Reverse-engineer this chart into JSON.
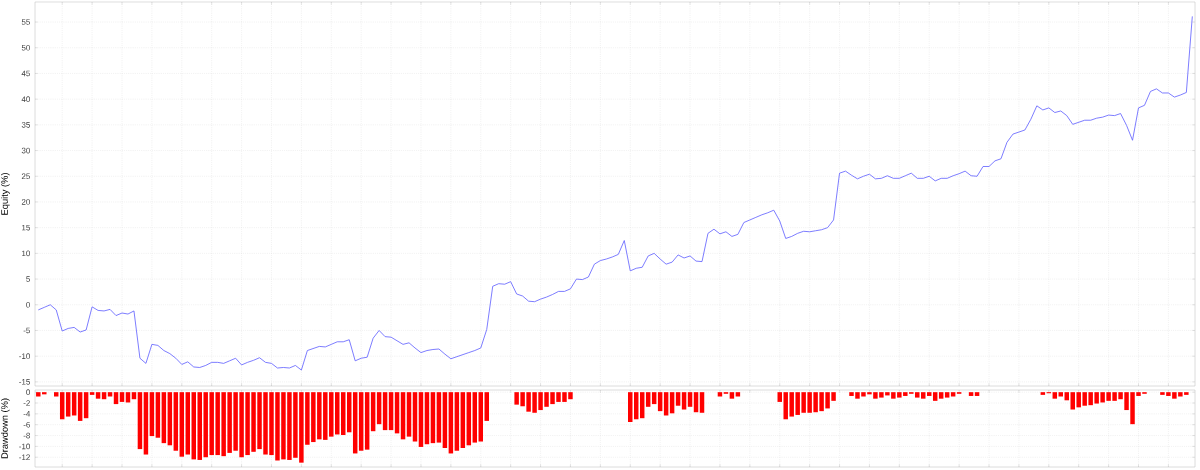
{
  "chart_data": [
    {
      "type": "line",
      "ylabel": "Equity (%)",
      "categories": [
        null,
        null,
        null,
        null,
        null,
        null,
        null,
        null,
        null,
        null,
        null,
        null,
        null,
        null,
        null,
        null,
        null,
        null,
        null,
        null,
        null,
        null,
        null,
        null,
        null,
        null,
        null,
        null,
        null,
        null,
        null,
        null,
        null,
        null,
        null,
        null,
        null,
        null,
        null,
        null,
        null,
        null,
        null,
        null,
        null,
        null,
        null,
        null,
        null,
        null,
        null,
        null,
        null,
        null,
        null,
        null,
        null,
        null,
        null,
        null,
        null,
        null,
        null,
        null,
        null,
        null,
        null,
        null,
        null,
        null,
        null,
        null,
        null,
        null,
        null,
        null,
        null,
        null,
        null,
        null,
        null,
        null,
        null,
        null,
        null,
        null,
        null,
        null,
        null,
        null,
        null,
        null,
        null,
        null,
        null,
        null,
        null,
        null,
        null,
        null,
        null,
        null,
        null,
        null,
        null,
        null,
        null,
        null,
        null,
        null,
        null,
        null,
        null,
        null,
        null,
        null,
        null,
        null,
        null,
        null,
        null,
        null,
        null,
        null,
        null,
        null,
        null,
        null,
        null,
        null,
        null,
        null,
        null,
        null,
        null,
        null,
        null,
        null,
        null,
        null,
        null,
        null,
        null,
        null,
        null,
        null,
        null,
        null,
        null,
        null,
        null,
        null,
        null,
        null,
        null,
        null,
        null,
        null,
        null,
        null,
        null,
        null,
        null,
        null,
        null,
        null,
        null,
        null,
        null,
        null,
        null,
        null,
        null,
        null,
        null,
        null,
        null,
        null,
        null,
        null,
        null,
        null,
        null,
        null,
        null,
        null,
        null,
        null,
        null,
        null,
        null,
        null,
        null,
        null
      ],
      "series": [
        {
          "color": "#5c5cff",
          "values": [
            -1.0,
            -0.5,
            0,
            -1.0,
            -5.1,
            -4.6,
            -4.4,
            -5.3,
            -4.9,
            -0.4,
            -1.1,
            -1.2,
            -0.9,
            -2.1,
            -1.6,
            -1.8,
            -1.2,
            -10.4,
            -11.4,
            -7.7,
            -7.9,
            -8.9,
            -9.5,
            -10.4,
            -11.6,
            -11.1,
            -12.1,
            -12.2,
            -11.8,
            -11.2,
            -11.2,
            -11.4,
            -10.9,
            -10.4,
            -11.7,
            -11.2,
            -10.8,
            -10.3,
            -11.2,
            -11.4,
            -12.3,
            -12.2,
            -12.3,
            -11.8,
            -12.7,
            -8.9,
            -8.5,
            -8.1,
            -8.2,
            -7.7,
            -7.2,
            -7.2,
            -6.8,
            -10.9,
            -10.4,
            -10.2,
            -6.5,
            -5.0,
            -6.2,
            -6.3,
            -7.0,
            -7.7,
            -7.4,
            -8.4,
            -9.3,
            -8.9,
            -8.7,
            -8.6,
            -9.6,
            -10.5,
            -10.1,
            -9.7,
            -9.3,
            -8.9,
            -8.4,
            -4.8,
            3.6,
            4.1,
            4.0,
            4.5,
            2.1,
            1.7,
            0.7,
            0.6,
            1.1,
            1.5,
            2.0,
            2.6,
            2.6,
            3.1,
            5.0,
            4.9,
            5.4,
            7.9,
            8.6,
            8.9,
            9.3,
            9.8,
            12.5,
            6.6,
            7.1,
            7.3,
            9.5,
            10.0,
            8.9,
            7.9,
            8.3,
            9.7,
            9.1,
            9.5,
            8.5,
            8.4,
            13.9,
            14.7,
            13.8,
            14.2,
            13.3,
            13.7,
            16.0,
            16.5,
            17.0,
            17.5,
            17.9,
            18.4,
            16.3,
            12.9,
            13.3,
            13.9,
            14.3,
            14.2,
            14.4,
            14.6,
            15.0,
            16.5,
            25.6,
            26.0,
            25.2,
            24.5,
            25.0,
            25.4,
            24.5,
            24.6,
            25.1,
            24.6,
            24.6,
            25.1,
            25.6,
            24.6,
            24.6,
            25.0,
            24.1,
            24.6,
            24.6,
            25.1,
            25.5,
            26.0,
            25.1,
            25.0,
            26.9,
            26.9,
            28.0,
            28.4,
            31.6,
            33.2,
            33.6,
            34.0,
            36.1,
            38.7,
            37.9,
            38.3,
            37.4,
            37.7,
            36.8,
            35.1,
            35.5,
            35.9,
            35.9,
            36.3,
            36.5,
            36.9,
            36.8,
            37.2,
            34.9,
            32.0,
            38.3,
            38.8,
            41.5,
            42.0,
            41.2,
            41.2,
            40.4,
            40.8,
            41.3,
            56.1
          ]
        }
      ],
      "ylim": [
        -15.8,
        58.9
      ],
      "yticks": [
        -15,
        -10,
        -5,
        0,
        5,
        10,
        15,
        20,
        25,
        30,
        35,
        40,
        45,
        50,
        55
      ],
      "grid": true
    },
    {
      "type": "bar",
      "ylabel": "Drawdown (%)",
      "categories": [
        null,
        null,
        null,
        null,
        null,
        null,
        null,
        null,
        null,
        null,
        null,
        null,
        null,
        null,
        null,
        null,
        null,
        null,
        null,
        null,
        null,
        null,
        null,
        null,
        null,
        null,
        null,
        null,
        null,
        null,
        null,
        null,
        null,
        null,
        null,
        null,
        null,
        null,
        null,
        null,
        null,
        null,
        null,
        null,
        null,
        null,
        null,
        null,
        null,
        null,
        null,
        null,
        null,
        null,
        null,
        null,
        null,
        null,
        null,
        null,
        null,
        null,
        null,
        null,
        null,
        null,
        null,
        null,
        null,
        null,
        null,
        null,
        null,
        null,
        null,
        null,
        null,
        null,
        null,
        null,
        null,
        null,
        null,
        null,
        null,
        null,
        null,
        null,
        null,
        null,
        null,
        null,
        null,
        null,
        null,
        null,
        null,
        null,
        null,
        null,
        null,
        null,
        null,
        null,
        null,
        null,
        null,
        null,
        null,
        null,
        null,
        null,
        null,
        null,
        null,
        null,
        null,
        null,
        null,
        null,
        null,
        null,
        null,
        null,
        null,
        null,
        null,
        null,
        null,
        null,
        null,
        null,
        null,
        null,
        null,
        null,
        null,
        null,
        null,
        null,
        null,
        null,
        null,
        null,
        null,
        null,
        null,
        null,
        null,
        null,
        null,
        null,
        null,
        null,
        null,
        null,
        null,
        null,
        null,
        null,
        null,
        null,
        null,
        null,
        null,
        null,
        null,
        null,
        null,
        null,
        null,
        null,
        null,
        null,
        null,
        null,
        null,
        null,
        null,
        null,
        null,
        null,
        null,
        null,
        null,
        null,
        null,
        null,
        null,
        null,
        null,
        null,
        null,
        null
      ],
      "color": "#ff0000",
      "values": [
        -0.8,
        -0.4,
        null,
        -0.8,
        -5.0,
        -4.5,
        -4.3,
        -5.3,
        -4.8,
        -0.5,
        -1.2,
        -1.3,
        -0.8,
        -2.2,
        -1.8,
        -1.9,
        -1.3,
        -10.5,
        -11.5,
        -8.1,
        -8.4,
        -9.4,
        -9.8,
        -10.8,
        -11.9,
        -11.5,
        -12.4,
        -12.5,
        -12.0,
        -11.6,
        -11.6,
        -11.8,
        -11.2,
        -10.8,
        -12.0,
        -11.6,
        -11.0,
        -10.5,
        -11.5,
        -11.6,
        -12.6,
        -12.4,
        -12.5,
        -12.1,
        -13.0,
        -9.7,
        -9.2,
        -8.7,
        -8.8,
        -8.2,
        -7.8,
        -7.9,
        -7.4,
        -11.3,
        -10.8,
        -10.6,
        -7.2,
        -5.9,
        -7.0,
        -7.0,
        -7.6,
        -8.7,
        -8.2,
        -9.1,
        -10.1,
        -9.6,
        -9.4,
        -9.3,
        -10.3,
        -11.3,
        -10.8,
        -10.3,
        -9.8,
        -9.3,
        -9.1,
        -5.3,
        null,
        null,
        null,
        null,
        -2.3,
        -2.6,
        -3.6,
        -3.8,
        -3.3,
        -2.7,
        -2.2,
        -1.8,
        -1.8,
        -1.3,
        null,
        null,
        null,
        null,
        null,
        null,
        null,
        null,
        null,
        -5.5,
        -5.0,
        -4.8,
        -2.7,
        -2.2,
        -3.5,
        -4.3,
        -3.9,
        -2.5,
        -3.2,
        -2.7,
        -3.7,
        -3.8,
        null,
        null,
        -0.8,
        -0.3,
        -1.2,
        -0.8,
        null,
        null,
        null,
        null,
        null,
        null,
        -1.8,
        -5.0,
        -4.5,
        -4.2,
        -3.8,
        -3.8,
        -3.7,
        -3.5,
        -3.0,
        -1.6,
        null,
        null,
        -0.7,
        -1.2,
        -0.8,
        -0.4,
        -1.2,
        -1.0,
        -0.6,
        -1.2,
        -1.0,
        -0.7,
        -0.3,
        -1.0,
        -1.2,
        -0.7,
        -1.6,
        -1.2,
        -1.0,
        -0.8,
        -0.3,
        null,
        -0.7,
        -0.7,
        null,
        null,
        null,
        null,
        null,
        null,
        null,
        null,
        null,
        null,
        -0.5,
        -0.2,
        -1.2,
        -0.8,
        -1.5,
        -3.2,
        -2.8,
        -2.5,
        -2.4,
        -2.1,
        -1.9,
        -1.6,
        -1.6,
        -1.3,
        -3.3,
        -5.9,
        -0.7,
        -0.3,
        null,
        null,
        -0.5,
        -0.7,
        -1.2,
        -0.8,
        -0.5,
        null
      ],
      "ylim": [
        -13.8,
        0.4
      ],
      "yticks": [
        -12,
        -10,
        -8,
        -6,
        -4,
        -2,
        0
      ],
      "grid": true
    }
  ]
}
